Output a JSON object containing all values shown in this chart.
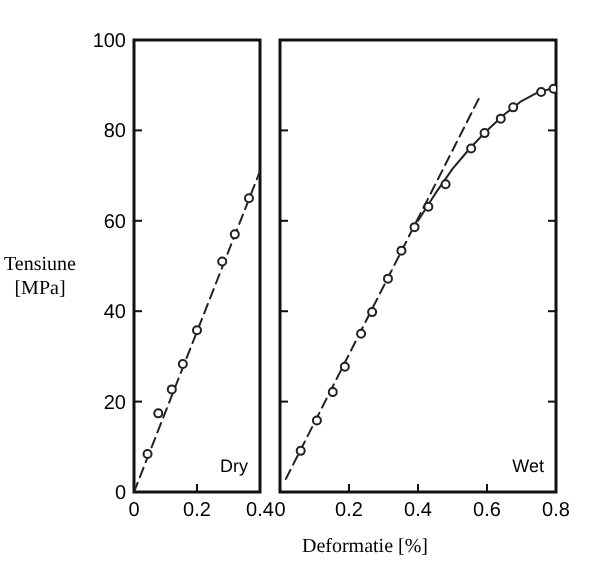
{
  "chart_data": [
    {
      "type": "scatter",
      "ylabel": "Tensiune [MPa]",
      "xlim": [
        0,
        0.4
      ],
      "ylim": [
        0,
        100
      ],
      "xticks": [
        0,
        0.2,
        0.4
      ],
      "yticks": [
        0,
        20,
        40,
        60,
        80,
        100
      ],
      "annotations": [
        "Dry"
      ],
      "series": [
        {
          "marker": "circle",
          "color": "#222222",
          "x": [
            0.043,
            0.077,
            0.12,
            0.155,
            0.2,
            0.28,
            0.32,
            0.365
          ],
          "values": [
            8.4,
            17.4,
            22.7,
            28.3,
            35.8,
            51,
            57,
            65
          ]
        },
        {
          "type": "line",
          "line_style": "dashed",
          "color": "#222222",
          "x": [
            0,
            0.4
          ],
          "values": [
            0,
            71
          ]
        }
      ]
    },
    {
      "type": "scatter",
      "xlabel": "Deformatie [%]",
      "xlim": [
        0,
        0.8
      ],
      "ylim": [
        0,
        100
      ],
      "xticks": [
        0,
        0.2,
        0.4,
        0.6,
        0.8
      ],
      "yticks": [
        0,
        20,
        40,
        60,
        80,
        100
      ],
      "tick_labels": "x",
      "annotations": [
        "Wet"
      ],
      "series": [
        {
          "marker": "circle",
          "color": "#222222",
          "x": [
            0.06,
            0.107,
            0.153,
            0.188,
            0.235,
            0.267,
            0.313,
            0.352,
            0.39,
            0.43,
            0.48,
            0.554,
            0.593,
            0.64,
            0.676,
            0.757,
            0.793
          ],
          "values": [
            9.1,
            15.8,
            22.1,
            27.7,
            35,
            39.8,
            47.2,
            53.4,
            58.6,
            63.1,
            68.1,
            76,
            79.4,
            82.6,
            85.1,
            88.5,
            89.2
          ]
        },
        {
          "type": "line",
          "line_style": "solid",
          "color": "#222222",
          "x": [
            0.4,
            0.45,
            0.5,
            0.55,
            0.6,
            0.65,
            0.7,
            0.75,
            0.8
          ],
          "values": [
            60,
            66,
            71.5,
            76,
            80,
            83.5,
            86.5,
            88.5,
            89.5
          ]
        },
        {
          "type": "line",
          "line_style": "dashed",
          "color": "#222222",
          "x": [
            0.017,
            0.576
          ],
          "values": [
            2.9,
            87
          ]
        }
      ]
    }
  ]
}
